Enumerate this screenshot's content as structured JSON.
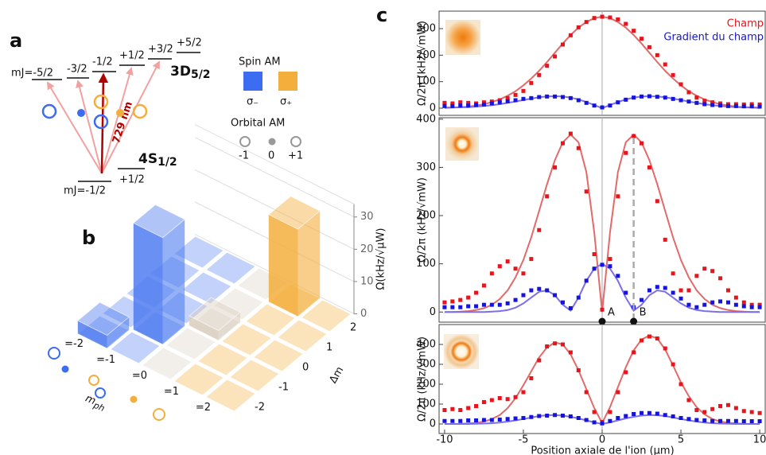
{
  "diagram": {
    "label": "a",
    "upper_levels": [
      "mJ=-5/2",
      "-3/2",
      "-1/2",
      "+1/2",
      "+3/2",
      "+5/2"
    ],
    "upper_state": {
      "main": "3D",
      "sub": "5/2"
    },
    "wavelength": "729 nm",
    "lower_state": {
      "main": "4S",
      "sub": "1/2"
    },
    "lower_levels": [
      "mJ=-1/2",
      "+1/2"
    ],
    "spin_title": "Spin AM",
    "spin": [
      "σ₋",
      "σ₊"
    ],
    "orbital_title": "Orbital AM",
    "orbital": [
      "-1",
      "0",
      "+1"
    ]
  },
  "chart_data": [
    {
      "type": "bar3d",
      "panel": "b",
      "zlabel": "Ω(kHz/√μW)",
      "zlim": [
        0,
        34
      ],
      "zticks": [
        0,
        10,
        20,
        30
      ],
      "row_label": {
        "main": "m",
        "sub": "ph"
      },
      "row_categories": [
        "=-2",
        "=-1",
        "=0",
        "=1",
        "=2"
      ],
      "col_label": "Δm",
      "col_categories": [
        "-2",
        "-1",
        "0",
        "1",
        "2"
      ],
      "row_colors": [
        "#4f7df0",
        "#4f7df0",
        "#d9cfc0",
        "#f3ae3c",
        "#f3ae3c"
      ],
      "values": [
        [
          4,
          0,
          0,
          0,
          0
        ],
        [
          0,
          33,
          0,
          0,
          0
        ],
        [
          0,
          0,
          3,
          0,
          0
        ],
        [
          0,
          0,
          0,
          0,
          27
        ],
        [
          0,
          0,
          0,
          0,
          0
        ]
      ]
    },
    {
      "type": "scatter",
      "panel": "c",
      "ylabel": "Ω/2π (kHz/√mW)",
      "xlim": [
        -10.35,
        10.4
      ],
      "ylim": [
        -27,
        366
      ],
      "yticks": [
        0,
        100,
        200,
        300
      ],
      "vline": 0,
      "x": [
        -10,
        -9.5,
        -9,
        -8.5,
        -8,
        -7.5,
        -7,
        -6.5,
        -6,
        -5.5,
        -5,
        -4.5,
        -4,
        -3.5,
        -3,
        -2.5,
        -2,
        -1.5,
        -1,
        -0.5,
        0,
        0.5,
        1,
        1.5,
        2,
        2.5,
        3,
        3.5,
        4,
        4.5,
        5,
        5.5,
        6,
        6.5,
        7,
        7.5,
        8,
        8.5,
        9,
        9.5,
        10
      ],
      "series": [
        {
          "name": "Champ",
          "color": "#e8141c",
          "mode": "markers",
          "values": [
            20,
            18,
            22,
            20,
            18,
            22,
            25,
            30,
            38,
            50,
            65,
            95,
            125,
            160,
            195,
            240,
            275,
            305,
            325,
            340,
            345,
            342,
            335,
            318,
            292,
            262,
            230,
            200,
            165,
            125,
            90,
            60,
            40,
            28,
            22,
            18,
            15,
            15,
            14,
            15,
            14
          ]
        },
        {
          "name": "Gradient du champ",
          "color": "#1414e0",
          "mode": "markers",
          "values": [
            8,
            8,
            10,
            10,
            12,
            14,
            18,
            22,
            26,
            30,
            35,
            38,
            42,
            44,
            44,
            42,
            38,
            30,
            20,
            10,
            3,
            10,
            22,
            32,
            40,
            44,
            45,
            43,
            40,
            35,
            30,
            25,
            20,
            15,
            12,
            10,
            8,
            8,
            7,
            7,
            6
          ]
        },
        {
          "color": "#e26a6a",
          "mode": "line",
          "values": [
            2,
            3,
            4,
            6,
            10,
            15,
            23,
            33,
            47,
            64,
            86,
            112,
            141,
            174,
            209,
            244,
            276,
            304,
            325,
            340,
            345,
            340,
            325,
            304,
            276,
            244,
            209,
            174,
            141,
            112,
            86,
            64,
            47,
            33,
            23,
            15,
            10,
            6,
            4,
            3,
            2
          ]
        },
        {
          "color": "#7d6fe8",
          "mode": "line",
          "values": [
            1,
            2,
            3,
            4,
            6,
            8,
            11,
            15,
            20,
            25,
            31,
            36,
            41,
            44,
            45,
            44,
            40,
            33,
            23,
            12,
            0,
            12,
            23,
            33,
            40,
            44,
            45,
            44,
            41,
            36,
            31,
            25,
            20,
            15,
            11,
            8,
            6,
            4,
            3,
            2,
            1
          ]
        }
      ]
    },
    {
      "type": "scatter",
      "ylabel": "Ω/2π (kHz/√mW)",
      "xlim": [
        -10.35,
        10.4
      ],
      "ylim": [
        -21,
        403
      ],
      "yticks": [
        0,
        100,
        200,
        300,
        400
      ],
      "vline": 0,
      "annotations": [
        {
          "label": "A",
          "x": 0
        },
        {
          "label": "B",
          "x": 2,
          "y": 365
        }
      ],
      "x": [
        -10,
        -9.5,
        -9,
        -8.5,
        -8,
        -7.5,
        -7,
        -6.5,
        -6,
        -5.5,
        -5,
        -4.5,
        -4,
        -3.5,
        -3,
        -2.5,
        -2,
        -1.5,
        -1,
        -0.5,
        0,
        0.5,
        1,
        1.5,
        2,
        2.5,
        3,
        3.5,
        4,
        4.5,
        5,
        5.5,
        6,
        6.5,
        7,
        7.5,
        8,
        8.5,
        9,
        9.5,
        10
      ],
      "series": [
        {
          "color": "#e8141c",
          "mode": "markers",
          "values": [
            20,
            22,
            25,
            30,
            40,
            55,
            80,
            95,
            105,
            90,
            80,
            110,
            170,
            240,
            300,
            350,
            370,
            340,
            250,
            120,
            5,
            110,
            240,
            330,
            365,
            350,
            300,
            230,
            150,
            80,
            45,
            45,
            75,
            90,
            85,
            70,
            45,
            30,
            20,
            15,
            15
          ]
        },
        {
          "color": "#1414e0",
          "mode": "markers",
          "values": [
            10,
            10,
            10,
            12,
            12,
            15,
            15,
            15,
            18,
            25,
            35,
            45,
            48,
            45,
            35,
            20,
            8,
            30,
            65,
            90,
            98,
            95,
            75,
            40,
            10,
            25,
            45,
            52,
            50,
            40,
            28,
            15,
            10,
            15,
            20,
            22,
            20,
            15,
            12,
            10,
            10
          ]
        },
        {
          "color": "#e26a6a",
          "mode": "line",
          "values": [
            0,
            0,
            1,
            2,
            4,
            8,
            15,
            27,
            45,
            72,
            108,
            155,
            210,
            265,
            315,
            352,
            368,
            352,
            290,
            165,
            0,
            165,
            290,
            352,
            368,
            352,
            315,
            265,
            210,
            155,
            108,
            72,
            45,
            27,
            15,
            8,
            4,
            2,
            1,
            0,
            0
          ]
        },
        {
          "color": "#7d6fe8",
          "mode": "line",
          "values": [
            0,
            0,
            0,
            0,
            0,
            0,
            1,
            2,
            4,
            9,
            18,
            30,
            42,
            45,
            35,
            15,
            3,
            30,
            65,
            90,
            100,
            90,
            65,
            30,
            3,
            15,
            35,
            45,
            42,
            30,
            18,
            9,
            4,
            2,
            1,
            0,
            0,
            0,
            0,
            0,
            0
          ]
        }
      ]
    },
    {
      "type": "scatter",
      "ylabel": "Ω/2π (kHz/√mW)",
      "xlabel": "Position axiale de l'ion (µm)",
      "xlim": [
        -10.35,
        10.4
      ],
      "ylim": [
        -48,
        500
      ],
      "yticks": [
        0,
        100,
        200,
        300,
        400
      ],
      "xticks": [
        -10,
        -5,
        0,
        5,
        10
      ],
      "vline": 0,
      "x": [
        -10,
        -9.5,
        -9,
        -8.5,
        -8,
        -7.5,
        -7,
        -6.5,
        -6,
        -5.5,
        -5,
        -4.5,
        -4,
        -3.5,
        -3,
        -2.5,
        -2,
        -1.5,
        -1,
        -0.5,
        0,
        0.5,
        1,
        1.5,
        2,
        2.5,
        3,
        3.5,
        4,
        4.5,
        5,
        5.5,
        6,
        6.5,
        7,
        7.5,
        8,
        8.5,
        9,
        9.5,
        10
      ],
      "series": [
        {
          "color": "#e8141c",
          "mode": "markers",
          "values": [
            70,
            75,
            70,
            80,
            90,
            110,
            120,
            130,
            125,
            135,
            160,
            230,
            320,
            390,
            405,
            400,
            360,
            270,
            160,
            60,
            10,
            60,
            160,
            260,
            360,
            420,
            440,
            430,
            380,
            300,
            200,
            120,
            70,
            60,
            75,
            90,
            95,
            80,
            65,
            60,
            55
          ]
        },
        {
          "color": "#1414e0",
          "mode": "markers",
          "values": [
            15,
            15,
            15,
            18,
            18,
            20,
            20,
            22,
            25,
            28,
            30,
            35,
            40,
            42,
            45,
            42,
            38,
            30,
            20,
            8,
            3,
            15,
            30,
            40,
            50,
            55,
            55,
            52,
            45,
            38,
            30,
            25,
            20,
            18,
            15,
            15,
            15,
            15,
            14,
            14,
            14
          ]
        },
        {
          "color": "#e26a6a",
          "mode": "line",
          "values": [
            0,
            0,
            1,
            3,
            6,
            12,
            25,
            45,
            80,
            130,
            195,
            265,
            335,
            385,
            410,
            400,
            350,
            270,
            175,
            80,
            5,
            85,
            185,
            285,
            370,
            425,
            445,
            430,
            375,
            295,
            210,
            140,
            85,
            48,
            25,
            12,
            6,
            3,
            1,
            0,
            0
          ]
        },
        {
          "color": "#7d6fe8",
          "mode": "line",
          "values": [
            0,
            0,
            0,
            0,
            1,
            2,
            4,
            7,
            12,
            18,
            25,
            33,
            40,
            44,
            45,
            42,
            36,
            28,
            18,
            8,
            0,
            8,
            18,
            28,
            36,
            42,
            45,
            44,
            40,
            33,
            25,
            18,
            12,
            7,
            4,
            2,
            1,
            0,
            0,
            0,
            0
          ]
        }
      ]
    }
  ]
}
